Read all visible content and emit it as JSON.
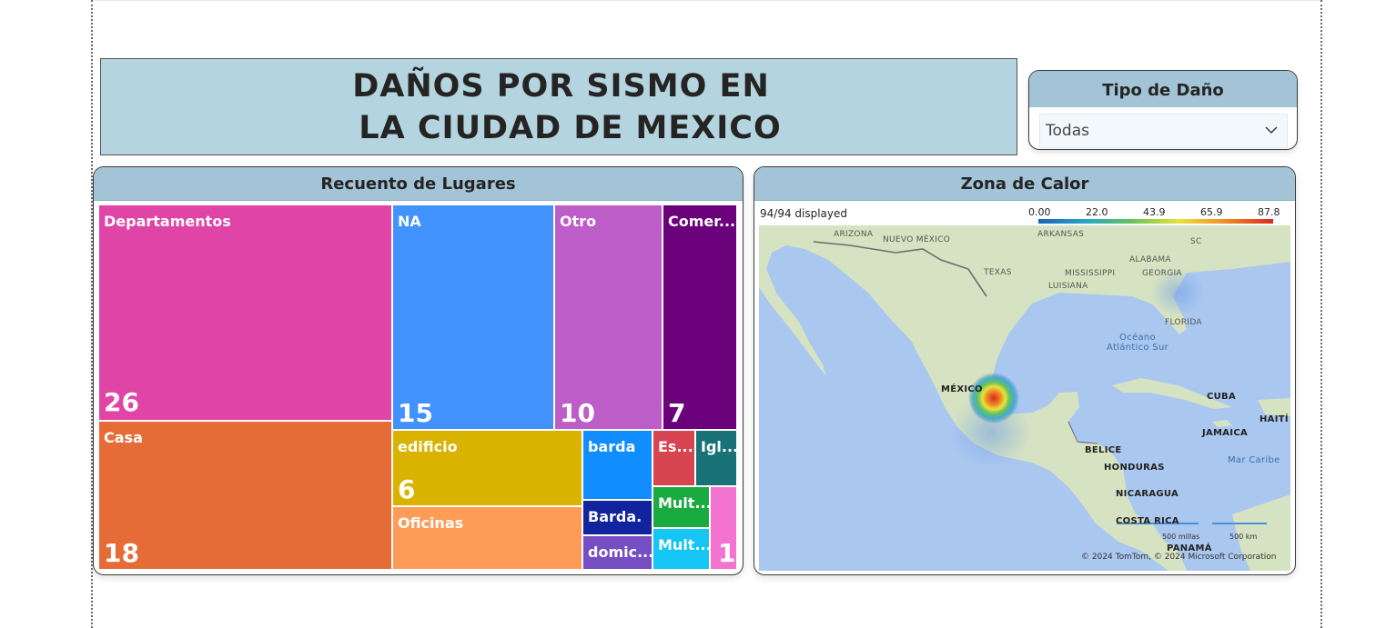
{
  "title": {
    "line1": "DAÑOS POR SISMO EN",
    "line2": "LA CIUDAD DE MEXICO"
  },
  "slicer": {
    "header": "Tipo de Daño",
    "selected": "Todas",
    "icon": "chevron-down-icon"
  },
  "treemap": {
    "header": "Recuento de Lugares",
    "tiles": [
      {
        "label": "Departamentos",
        "value": "26",
        "color": "#e044a7"
      },
      {
        "label": "Casa",
        "value": "18",
        "color": "#e66c37"
      },
      {
        "label": "NA",
        "value": "15",
        "color": "#4192fd"
      },
      {
        "label": "Otro",
        "value": "10",
        "color": "#bd5dc8"
      },
      {
        "label": "Comer...",
        "value": "7",
        "color": "#6b007b"
      },
      {
        "label": "edificio",
        "value": "6",
        "color": "#d9b300"
      },
      {
        "label": "Oficinas",
        "value": "",
        "color": "#fe9c57"
      },
      {
        "label": "barda",
        "value": "",
        "color": "#118dff"
      },
      {
        "label": "Barda.",
        "value": "",
        "color": "#12239e"
      },
      {
        "label": "domic...",
        "value": "",
        "color": "#744ec2"
      },
      {
        "label": "Es...",
        "value": "",
        "color": "#d64550"
      },
      {
        "label": "Igl...",
        "value": "",
        "color": "#197278"
      },
      {
        "label": "Mult...",
        "value": "",
        "color": "#1aab40"
      },
      {
        "label": "Mult...",
        "value": "",
        "color": "#15c6f4"
      },
      {
        "label": "",
        "value": "1",
        "color": "#f472d0"
      }
    ]
  },
  "map": {
    "header": "Zona de Calor",
    "displayed": "94/94 displayed",
    "legend_ticks": [
      "0.00",
      "22.0",
      "43.9",
      "65.9",
      "87.8"
    ],
    "places": {
      "arizona": "ARIZONA",
      "nuevo_mexico": "NUEVO MÉXICO",
      "arkansas": "ARKANSAS",
      "sc": "SC",
      "alabama": "ALABAMA",
      "texas": "TEXAS",
      "mississippi": "MISSISSIPPI",
      "georgia": "GEORGIA",
      "luisiana": "LUISIANA",
      "florida": "FLORIDA",
      "oceano_line1": "Océano",
      "oceano_line2": "Atlántico Sur",
      "mexico": "MÉXICO",
      "cuba": "CUBA",
      "haiti": "HAITÍ",
      "jamaica": "JAMAICA",
      "belice": "BELICE",
      "mar_caribe": "Mar Caribe",
      "honduras": "HONDURAS",
      "nicaragua": "NICARAGUA",
      "costa_rica": "COSTA RICA",
      "panama": "PANAMÁ"
    },
    "scale_miles": "500 millas",
    "scale_km": "500 km",
    "attribution": "© 2024 TomTom, © 2024 Microsoft Corporation"
  }
}
